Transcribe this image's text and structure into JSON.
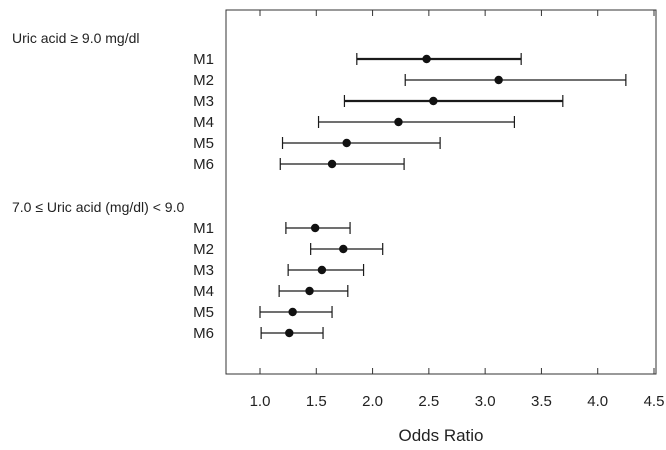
{
  "chart_data": {
    "type": "forest",
    "xlabel": "Odds Ratio",
    "xlim": [
      0.7,
      4.5
    ],
    "xticks": [
      "1.0",
      "1.5",
      "2.0",
      "2.5",
      "3.0",
      "3.5",
      "4.0",
      "4.5"
    ],
    "groups": [
      {
        "label": "Uric acid ≥ 9.0 mg/dl",
        "rows": [
          {
            "label": "M1",
            "estimate": 2.48,
            "lower": 1.86,
            "upper": 3.32,
            "bold": true
          },
          {
            "label": "M2",
            "estimate": 3.12,
            "lower": 2.29,
            "upper": 4.25,
            "bold": false
          },
          {
            "label": "M3",
            "estimate": 2.54,
            "lower": 1.75,
            "upper": 3.69,
            "bold": true
          },
          {
            "label": "M4",
            "estimate": 2.23,
            "lower": 1.52,
            "upper": 3.26,
            "bold": false
          },
          {
            "label": "M5",
            "estimate": 1.77,
            "lower": 1.2,
            "upper": 2.6,
            "bold": false
          },
          {
            "label": "M6",
            "estimate": 1.64,
            "lower": 1.18,
            "upper": 2.28,
            "bold": false
          }
        ]
      },
      {
        "label": "7.0 ≤ Uric acid (mg/dl) < 9.0",
        "rows": [
          {
            "label": "M1",
            "estimate": 1.49,
            "lower": 1.23,
            "upper": 1.8,
            "bold": false
          },
          {
            "label": "M2",
            "estimate": 1.74,
            "lower": 1.45,
            "upper": 2.09,
            "bold": false
          },
          {
            "label": "M3",
            "estimate": 1.55,
            "lower": 1.25,
            "upper": 1.92,
            "bold": false
          },
          {
            "label": "M4",
            "estimate": 1.44,
            "lower": 1.17,
            "upper": 1.78,
            "bold": false
          },
          {
            "label": "M5",
            "estimate": 1.29,
            "lower": 1.0,
            "upper": 1.64,
            "bold": false
          },
          {
            "label": "M6",
            "estimate": 1.26,
            "lower": 1.01,
            "upper": 1.56,
            "bold": false
          }
        ]
      }
    ],
    "style": {
      "line_color": "#1a1a1a",
      "point_color": "#111111",
      "frame_color": "#333333"
    }
  }
}
